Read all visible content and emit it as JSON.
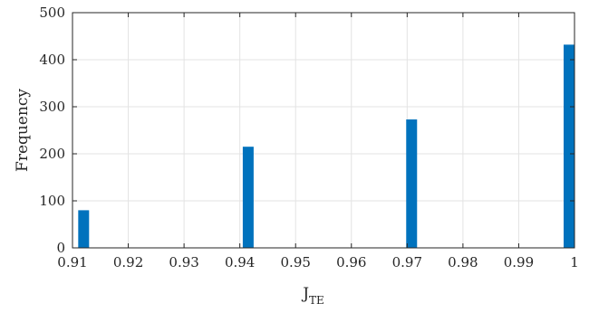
{
  "chart_data": {
    "type": "bar",
    "xlabel_main": "J",
    "xlabel_sub": "TE",
    "ylabel": "Frequency",
    "xlim": [
      0.91,
      1.0
    ],
    "ylim": [
      0,
      500
    ],
    "xticks": [
      "0.91",
      "0.92",
      "0.93",
      "0.94",
      "0.95",
      "0.96",
      "0.97",
      "0.98",
      "0.99",
      "1"
    ],
    "yticks": [
      "0",
      "100",
      "200",
      "300",
      "400",
      "500"
    ],
    "bars": [
      {
        "x": 0.912,
        "value": 80
      },
      {
        "x": 0.9415,
        "value": 215
      },
      {
        "x": 0.9708,
        "value": 273
      },
      {
        "x": 0.9998,
        "value": 432
      }
    ],
    "bar_color": "#0072BD",
    "grid": true
  }
}
